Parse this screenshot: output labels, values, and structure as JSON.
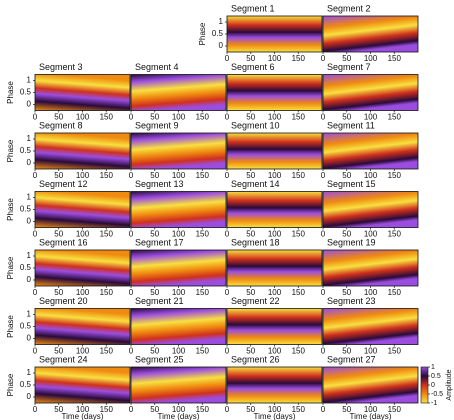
{
  "chart_data": {
    "type": "heatmap",
    "panels": [
      {
        "title": "Segment 1"
      },
      {
        "title": "Segment 2"
      },
      {
        "title": "Segment 3"
      },
      {
        "title": "Segment 4"
      },
      {
        "title": "Segment 6"
      },
      {
        "title": "Segment 7"
      },
      {
        "title": "Segment 8"
      },
      {
        "title": "Segment 9"
      },
      {
        "title": "Segment 10"
      },
      {
        "title": "Segment 11"
      },
      {
        "title": "Segment 12"
      },
      {
        "title": "Segment 13"
      },
      {
        "title": "Segment 14"
      },
      {
        "title": "Segment 15"
      },
      {
        "title": "Segment 16"
      },
      {
        "title": "Segment 17"
      },
      {
        "title": "Segment 18"
      },
      {
        "title": "Segment 19"
      },
      {
        "title": "Segment 20"
      },
      {
        "title": "Segment 21"
      },
      {
        "title": "Segment 22"
      },
      {
        "title": "Segment 23"
      },
      {
        "title": "Segment 24"
      },
      {
        "title": "Segment 25"
      },
      {
        "title": "Segment 26"
      },
      {
        "title": "Segment 27"
      }
    ],
    "xlabel": "Time (days)",
    "ylabel": "Phase",
    "xlim": [
      0,
      200
    ],
    "xticks": [
      0,
      50,
      100,
      150
    ],
    "ylim": [
      -0.25,
      1.25
    ],
    "yticks": [
      0,
      0.5,
      1
    ],
    "colorbar": {
      "label": "Amplitude",
      "lim": [
        -1,
        1
      ],
      "ticks": [
        1,
        0.5,
        0,
        -0.5,
        -1
      ],
      "colors": [
        "#f8e040",
        "#f08a10",
        "#d0301c",
        "#2a0a3a",
        "#9b4de0"
      ]
    }
  }
}
